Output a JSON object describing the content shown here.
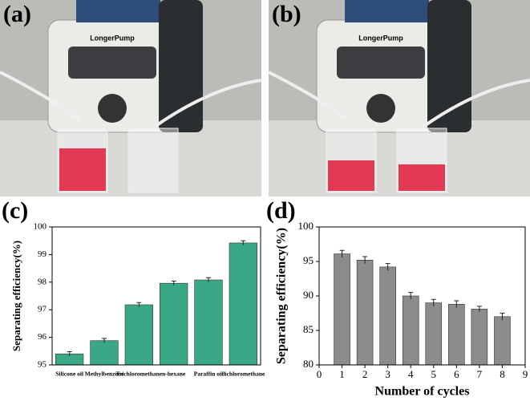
{
  "photos": [
    {
      "panel_label": "(a)",
      "pump_label": "LongerPump"
    },
    {
      "panel_label": "(b)",
      "pump_label": "LongerPump"
    }
  ],
  "chart_data": [
    {
      "type": "bar",
      "panel_label": "(c)",
      "y_label": "Separating efficiency(%)",
      "categories": [
        "Silicone oil",
        "Methylbenzene",
        "Trichloromethane",
        "n-hexane",
        "Paraffin oil",
        "dichloromethane"
      ],
      "values": [
        95.4,
        95.88,
        97.18,
        97.96,
        98.08,
        99.42
      ],
      "errors": [
        0.08,
        0.08,
        0.08,
        0.08,
        0.08,
        0.08
      ],
      "color": "#3aa886",
      "ylim": [
        95,
        100
      ],
      "yticks": [
        95,
        96,
        97,
        98,
        99,
        100
      ]
    },
    {
      "type": "bar",
      "panel_label": "(d)",
      "x_label": "Number of cycles",
      "y_label": "Separating efficiency(%)",
      "x": [
        1,
        2,
        3,
        4,
        5,
        6,
        7,
        8
      ],
      "values": [
        96.1,
        95.2,
        94.2,
        90.0,
        89.0,
        88.8,
        88.1,
        87.0
      ],
      "errors": [
        0.5,
        0.5,
        0.5,
        0.5,
        0.5,
        0.5,
        0.4,
        0.5
      ],
      "color": "#8c8c8c",
      "xlim": [
        0,
        9
      ],
      "xticks": [
        0,
        1,
        2,
        3,
        4,
        5,
        6,
        7,
        8,
        9
      ],
      "ylim": [
        80,
        100
      ],
      "yticks": [
        80,
        85,
        90,
        95,
        100
      ]
    }
  ]
}
